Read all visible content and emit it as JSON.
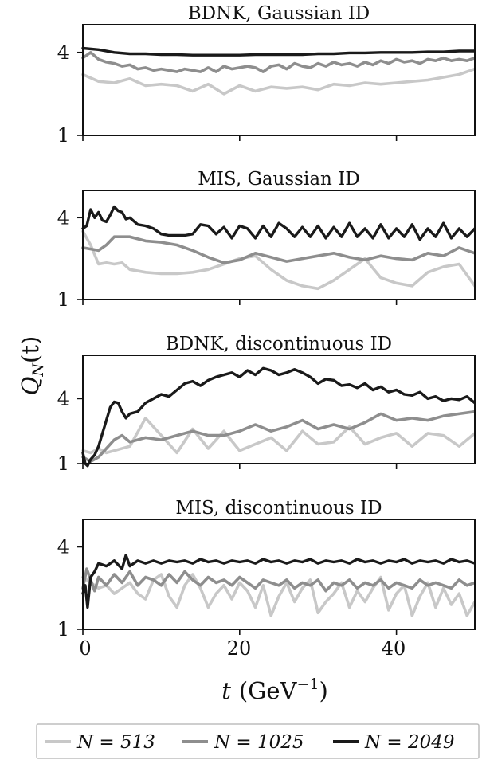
{
  "chart_data": [
    {
      "type": "line",
      "title": "BDNK, Gaussian ID",
      "xlim": [
        0,
        50
      ],
      "ylim": [
        1,
        5
      ],
      "yticks": [
        "4",
        "1"
      ],
      "series": [
        {
          "name": "N = 513",
          "color": "#c8c8c8",
          "x": [
            0,
            2,
            4,
            6,
            8,
            10,
            12,
            14,
            16,
            18,
            20,
            22,
            24,
            26,
            28,
            30,
            32,
            34,
            36,
            38,
            40,
            42,
            44,
            46,
            48,
            50
          ],
          "y": [
            3.2,
            2.95,
            2.9,
            3.05,
            2.8,
            2.85,
            2.8,
            2.6,
            2.85,
            2.5,
            2.8,
            2.6,
            2.75,
            2.7,
            2.75,
            2.65,
            2.85,
            2.8,
            2.9,
            2.85,
            2.9,
            2.95,
            3.0,
            3.1,
            3.2,
            3.4
          ]
        },
        {
          "name": "N = 1025",
          "color": "#8e8e8e",
          "x": [
            0,
            1,
            2,
            3,
            4,
            5,
            6,
            7,
            8,
            9,
            10,
            11,
            12,
            13,
            14,
            15,
            16,
            17,
            18,
            19,
            20,
            21,
            22,
            23,
            24,
            25,
            26,
            27,
            28,
            29,
            30,
            31,
            32,
            33,
            34,
            35,
            36,
            37,
            38,
            39,
            40,
            41,
            42,
            43,
            44,
            45,
            46,
            47,
            48,
            49,
            50
          ],
          "y": [
            3.8,
            4.0,
            3.75,
            3.65,
            3.6,
            3.5,
            3.55,
            3.4,
            3.45,
            3.35,
            3.4,
            3.35,
            3.3,
            3.4,
            3.35,
            3.3,
            3.45,
            3.3,
            3.5,
            3.4,
            3.45,
            3.5,
            3.45,
            3.3,
            3.5,
            3.55,
            3.4,
            3.6,
            3.5,
            3.45,
            3.6,
            3.5,
            3.65,
            3.55,
            3.6,
            3.5,
            3.65,
            3.55,
            3.7,
            3.6,
            3.75,
            3.65,
            3.7,
            3.6,
            3.75,
            3.7,
            3.8,
            3.7,
            3.75,
            3.7,
            3.8
          ]
        },
        {
          "name": "N = 2049",
          "color": "#1a1a1a",
          "x": [
            0,
            2,
            4,
            6,
            8,
            10,
            12,
            14,
            16,
            18,
            20,
            22,
            24,
            26,
            28,
            30,
            32,
            34,
            36,
            38,
            40,
            42,
            44,
            46,
            48,
            50
          ],
          "y": [
            4.15,
            4.1,
            4.0,
            3.95,
            3.95,
            3.92,
            3.92,
            3.9,
            3.9,
            3.9,
            3.9,
            3.92,
            3.92,
            3.92,
            3.92,
            3.95,
            3.95,
            3.98,
            3.98,
            4.0,
            4.0,
            4.0,
            4.02,
            4.02,
            4.05,
            4.05
          ]
        }
      ]
    },
    {
      "type": "line",
      "title": "MIS, Gaussian ID",
      "xlim": [
        0,
        50
      ],
      "ylim": [
        1,
        5
      ],
      "yticks": [
        "4",
        "1"
      ],
      "series": [
        {
          "name": "N = 513",
          "color": "#c8c8c8",
          "x": [
            0,
            1,
            2,
            3,
            4,
            5,
            6,
            8,
            10,
            12,
            14,
            16,
            18,
            20,
            22,
            24,
            26,
            28,
            30,
            32,
            34,
            36,
            38,
            40,
            42,
            44,
            46,
            48,
            50
          ],
          "y": [
            3.5,
            3.0,
            2.3,
            2.35,
            2.3,
            2.35,
            2.1,
            2.0,
            1.95,
            1.95,
            2.0,
            2.1,
            2.3,
            2.5,
            2.6,
            2.1,
            1.7,
            1.5,
            1.4,
            1.7,
            2.1,
            2.5,
            1.8,
            1.6,
            1.5,
            2.0,
            2.2,
            2.3,
            1.5
          ]
        },
        {
          "name": "N = 1025",
          "color": "#8e8e8e",
          "x": [
            0,
            2,
            3,
            4,
            6,
            8,
            10,
            12,
            14,
            16,
            18,
            20,
            22,
            24,
            26,
            28,
            30,
            32,
            34,
            36,
            38,
            40,
            42,
            44,
            46,
            48,
            50
          ],
          "y": [
            2.9,
            2.8,
            3.0,
            3.3,
            3.3,
            3.15,
            3.1,
            3.0,
            2.8,
            2.55,
            2.35,
            2.45,
            2.7,
            2.55,
            2.4,
            2.5,
            2.6,
            2.7,
            2.55,
            2.45,
            2.6,
            2.5,
            2.45,
            2.7,
            2.6,
            2.9,
            2.7
          ]
        },
        {
          "name": "N = 2049",
          "color": "#1a1a1a",
          "x": [
            0,
            0.5,
            1,
            1.5,
            2,
            2.5,
            3,
            3.5,
            4,
            4.5,
            5,
            5.5,
            6,
            7,
            8,
            9,
            10,
            11,
            12,
            13,
            14,
            15,
            16,
            17,
            18,
            19,
            20,
            21,
            22,
            23,
            24,
            25,
            26,
            27,
            28,
            29,
            30,
            31,
            32,
            33,
            34,
            35,
            36,
            37,
            38,
            39,
            40,
            41,
            42,
            43,
            44,
            45,
            46,
            47,
            48,
            49,
            50
          ],
          "y": [
            3.6,
            3.7,
            4.3,
            4.0,
            4.2,
            3.9,
            3.85,
            4.1,
            4.4,
            4.25,
            4.2,
            3.95,
            4.0,
            3.75,
            3.7,
            3.6,
            3.4,
            3.35,
            3.35,
            3.35,
            3.4,
            3.75,
            3.7,
            3.4,
            3.65,
            3.25,
            3.7,
            3.6,
            3.25,
            3.7,
            3.3,
            3.8,
            3.6,
            3.3,
            3.65,
            3.3,
            3.7,
            3.25,
            3.65,
            3.3,
            3.8,
            3.3,
            3.6,
            3.25,
            3.75,
            3.25,
            3.6,
            3.3,
            3.75,
            3.2,
            3.6,
            3.3,
            3.8,
            3.25,
            3.6,
            3.3,
            3.6
          ]
        }
      ]
    },
    {
      "type": "line",
      "title": "BDNK, discontinuous ID",
      "xlim": [
        0,
        50
      ],
      "ylim": [
        1,
        6
      ],
      "yticks": [
        "4",
        "1"
      ],
      "series": [
        {
          "name": "N = 513",
          "color": "#c8c8c8",
          "x": [
            0,
            1,
            2,
            3,
            4,
            6,
            8,
            10,
            12,
            14,
            16,
            18,
            20,
            22,
            24,
            26,
            28,
            30,
            32,
            34,
            36,
            38,
            40,
            42,
            44,
            46,
            48,
            50
          ],
          "y": [
            1.6,
            1.5,
            1.7,
            1.5,
            1.6,
            1.8,
            3.1,
            2.3,
            1.5,
            2.6,
            1.7,
            2.5,
            1.6,
            1.9,
            2.2,
            1.6,
            2.5,
            1.9,
            2.0,
            2.7,
            1.9,
            2.2,
            2.4,
            1.8,
            2.4,
            2.3,
            1.8,
            2.4
          ]
        },
        {
          "name": "N = 1025",
          "color": "#8e8e8e",
          "x": [
            0,
            1,
            2,
            3,
            4,
            5,
            6,
            8,
            10,
            12,
            14,
            16,
            18,
            20,
            22,
            24,
            26,
            28,
            30,
            32,
            34,
            36,
            38,
            40,
            42,
            44,
            46,
            48,
            50
          ],
          "y": [
            1.3,
            1.1,
            1.3,
            1.7,
            2.1,
            2.3,
            2.0,
            2.2,
            2.1,
            2.3,
            2.5,
            2.3,
            2.3,
            2.5,
            2.8,
            2.5,
            2.7,
            3.0,
            2.6,
            2.8,
            2.6,
            2.9,
            3.3,
            3.0,
            3.1,
            3.0,
            3.2,
            3.3,
            3.4
          ]
        },
        {
          "name": "N = 2049",
          "color": "#1a1a1a",
          "x": [
            0,
            0.3,
            0.6,
            1,
            1.5,
            2,
            2.5,
            3,
            3.5,
            4,
            4.5,
            5,
            5.5,
            6,
            7,
            8,
            9,
            10,
            11,
            12,
            13,
            14,
            15,
            16,
            17,
            18,
            19,
            20,
            21,
            22,
            23,
            24,
            25,
            26,
            27,
            28,
            29,
            30,
            31,
            32,
            33,
            34,
            35,
            36,
            37,
            38,
            39,
            40,
            41,
            42,
            43,
            44,
            45,
            46,
            47,
            48,
            49,
            50
          ],
          "y": [
            1.5,
            1.0,
            0.9,
            1.2,
            1.4,
            1.8,
            2.4,
            3.0,
            3.6,
            3.85,
            3.8,
            3.4,
            3.1,
            3.3,
            3.4,
            3.8,
            4.0,
            4.2,
            4.1,
            4.4,
            4.7,
            4.8,
            4.6,
            4.85,
            5.0,
            5.1,
            5.2,
            5.0,
            5.3,
            5.1,
            5.4,
            5.3,
            5.1,
            5.2,
            5.35,
            5.2,
            5.0,
            4.7,
            4.9,
            4.85,
            4.6,
            4.65,
            4.5,
            4.7,
            4.4,
            4.55,
            4.3,
            4.4,
            4.2,
            4.15,
            4.3,
            4.0,
            4.1,
            3.9,
            4.0,
            3.95,
            4.1,
            3.8
          ]
        }
      ]
    },
    {
      "type": "line",
      "title": "MIS, discontinuous ID",
      "xlim": [
        0,
        50
      ],
      "ylim": [
        1,
        5
      ],
      "yticks": [
        "4",
        "1"
      ],
      "series": [
        {
          "name": "N = 513",
          "color": "#c8c8c8",
          "x": [
            0,
            1,
            2,
            3,
            4,
            5,
            6,
            7,
            8,
            9,
            10,
            11,
            12,
            13,
            14,
            15,
            16,
            17,
            18,
            19,
            20,
            21,
            22,
            23,
            24,
            25,
            26,
            27,
            28,
            29,
            30,
            31,
            32,
            33,
            34,
            35,
            36,
            37,
            38,
            39,
            40,
            41,
            42,
            43,
            44,
            45,
            46,
            47,
            48,
            49,
            50
          ],
          "y": [
            2.9,
            2.7,
            2.5,
            2.6,
            2.3,
            2.5,
            2.7,
            2.3,
            2.1,
            2.8,
            3.0,
            2.2,
            1.8,
            2.6,
            3.0,
            2.5,
            1.8,
            2.3,
            2.6,
            2.1,
            2.7,
            2.4,
            1.8,
            2.6,
            1.5,
            2.2,
            2.7,
            2.0,
            2.5,
            2.8,
            1.6,
            2.0,
            2.3,
            2.7,
            1.8,
            2.4,
            2.0,
            2.5,
            2.9,
            1.7,
            2.3,
            2.6,
            1.5,
            2.2,
            2.7,
            1.8,
            2.5,
            1.9,
            2.3,
            1.5,
            2.0
          ]
        },
        {
          "name": "N = 1025",
          "color": "#8e8e8e",
          "x": [
            0,
            0.5,
            1,
            1.5,
            2,
            3,
            4,
            5,
            6,
            7,
            8,
            9,
            10,
            11,
            12,
            13,
            14,
            15,
            16,
            17,
            18,
            19,
            20,
            21,
            22,
            23,
            24,
            25,
            26,
            27,
            28,
            29,
            30,
            31,
            32,
            33,
            34,
            35,
            36,
            37,
            38,
            39,
            40,
            41,
            42,
            43,
            44,
            45,
            46,
            47,
            48,
            49,
            50
          ],
          "y": [
            2.5,
            3.2,
            2.8,
            2.4,
            2.9,
            2.6,
            3.0,
            2.7,
            3.1,
            2.6,
            2.9,
            2.8,
            2.6,
            3.0,
            2.7,
            3.1,
            2.8,
            2.6,
            2.9,
            2.7,
            2.8,
            2.6,
            2.9,
            2.7,
            2.5,
            2.8,
            2.7,
            2.6,
            2.8,
            2.5,
            2.7,
            2.6,
            2.8,
            2.4,
            2.7,
            2.6,
            2.8,
            2.5,
            2.7,
            2.6,
            2.8,
            2.5,
            2.7,
            2.6,
            2.5,
            2.8,
            2.6,
            2.7,
            2.6,
            2.5,
            2.8,
            2.6,
            2.7
          ]
        },
        {
          "name": "N = 2049",
          "color": "#1a1a1a",
          "x": [
            0,
            0.3,
            0.6,
            1,
            1.5,
            2,
            3,
            4,
            5,
            5.5,
            6,
            7,
            8,
            9,
            10,
            11,
            12,
            13,
            14,
            15,
            16,
            17,
            18,
            19,
            20,
            21,
            22,
            23,
            24,
            25,
            26,
            27,
            28,
            29,
            30,
            31,
            32,
            33,
            34,
            35,
            36,
            37,
            38,
            39,
            40,
            41,
            42,
            43,
            44,
            45,
            46,
            47,
            48,
            49,
            50
          ],
          "y": [
            2.3,
            2.6,
            1.8,
            2.9,
            3.1,
            3.4,
            3.3,
            3.5,
            3.2,
            3.7,
            3.3,
            3.5,
            3.4,
            3.5,
            3.4,
            3.5,
            3.45,
            3.5,
            3.4,
            3.55,
            3.45,
            3.5,
            3.4,
            3.5,
            3.45,
            3.5,
            3.4,
            3.55,
            3.45,
            3.5,
            3.4,
            3.5,
            3.45,
            3.55,
            3.4,
            3.5,
            3.45,
            3.5,
            3.4,
            3.55,
            3.45,
            3.5,
            3.4,
            3.5,
            3.45,
            3.55,
            3.4,
            3.5,
            3.45,
            3.5,
            3.4,
            3.55,
            3.45,
            3.5,
            3.4
          ]
        }
      ]
    }
  ],
  "axes": {
    "ylabel_main": "Q",
    "ylabel_sub": "N",
    "ylabel_tail": "(t)",
    "xlabel_var": "t",
    "xlabel_unit": "(GeV",
    "xlabel_exp": "−1",
    "xlabel_close": ")",
    "xticks": [
      "0",
      "20",
      "40"
    ]
  },
  "legend": {
    "items": [
      {
        "label": "N = 513",
        "color": "#c8c8c8"
      },
      {
        "label": "N = 1025",
        "color": "#8e8e8e"
      },
      {
        "label": "N = 2049",
        "color": "#1a1a1a"
      }
    ]
  }
}
